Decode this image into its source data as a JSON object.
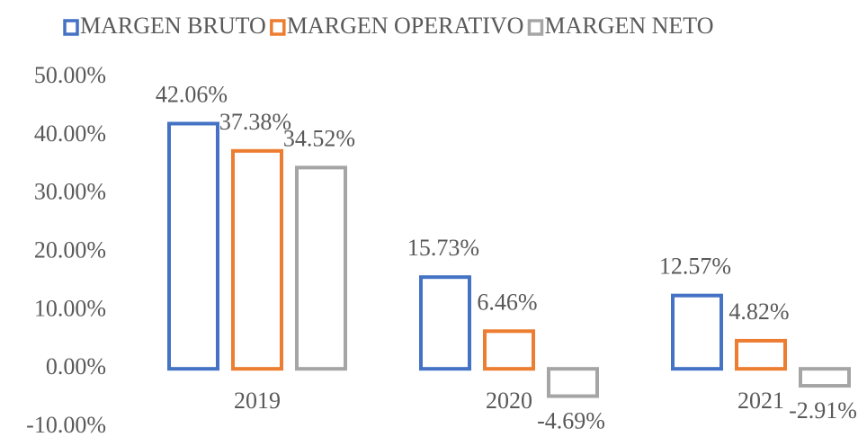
{
  "chart_data": {
    "type": "bar",
    "categories": [
      "2019",
      "2020",
      "2021"
    ],
    "series": [
      {
        "name": "MARGEN BRUTO",
        "color": "#4472c4",
        "values": [
          42.06,
          15.73,
          12.57
        ],
        "value_labels": [
          "42.06%",
          "15.73%",
          "12.57%"
        ]
      },
      {
        "name": "MARGEN OPERATIVO",
        "color": "#ed7d31",
        "values": [
          37.38,
          6.46,
          4.82
        ],
        "value_labels": [
          "37.38%",
          "6.46%",
          "4.82%"
        ]
      },
      {
        "name": "MARGEN NETO",
        "color": "#a5a5a5",
        "values": [
          34.52,
          -4.69,
          -2.91
        ],
        "value_labels": [
          "34.52%",
          "-4.69%",
          "-2.91%"
        ]
      }
    ],
    "ylim": [
      -10,
      50
    ],
    "yticks": [
      {
        "value": -10,
        "label": "-10.00%"
      },
      {
        "value": 0,
        "label": "0.00%"
      },
      {
        "value": 10,
        "label": "10.00%"
      },
      {
        "value": 20,
        "label": "20.00%"
      },
      {
        "value": 30,
        "label": "30.00%"
      },
      {
        "value": 40,
        "label": "40.00%"
      },
      {
        "value": 50,
        "label": "50.00%"
      }
    ],
    "grid": false,
    "legend": "top"
  }
}
